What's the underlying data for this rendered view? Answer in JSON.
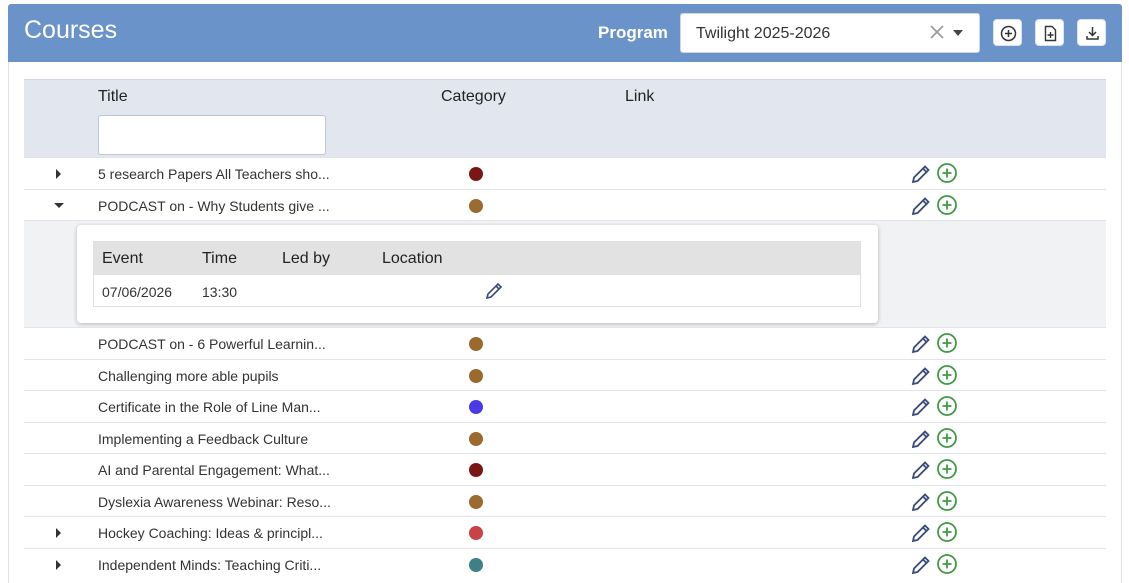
{
  "header": {
    "title": "Courses",
    "program_label": "Program",
    "program_value": "Twilight 2025-2026"
  },
  "grid": {
    "columns": [
      "Title",
      "Category",
      "Link"
    ],
    "filter_value": ""
  },
  "rows": [
    {
      "title": "5 research Papers All Teachers sho...",
      "color": "#7a1616",
      "expander": "collapsed"
    },
    {
      "title": "PODCAST on - Why Students give ...",
      "color": "#9a6a2e",
      "expander": "open"
    },
    {
      "title": "PODCAST on - 6 Powerful Learnin...",
      "color": "#9a6a2e",
      "expander": "none"
    },
    {
      "title": "Challenging more able pupils",
      "color": "#9a6a2e",
      "expander": "none"
    },
    {
      "title": "Certificate in the Role of Line Man...",
      "color": "#4a3ae6",
      "expander": "none"
    },
    {
      "title": "Implementing a Feedback Culture",
      "color": "#9a6a2e",
      "expander": "none"
    },
    {
      "title": "AI and Parental Engagement: What...",
      "color": "#7a1616",
      "expander": "none"
    },
    {
      "title": "Dyslexia Awareness Webinar: Reso...",
      "color": "#9a6a2e",
      "expander": "none"
    },
    {
      "title": "Hockey Coaching: Ideas & principl...",
      "color": "#c84444",
      "expander": "collapsed"
    },
    {
      "title": "Independent Minds: Teaching Criti...",
      "color": "#3f7f86",
      "expander": "collapsed"
    }
  ],
  "detail": {
    "columns": [
      "Event",
      "Time",
      "Led by",
      "Location"
    ],
    "event": "07/06/2026",
    "time": "13:30",
    "led_by": "",
    "location": ""
  },
  "colors": {
    "header_bg": "#6a93c9",
    "edit_icon": "#3b4a7a",
    "add_icon": "#3f9a45"
  }
}
